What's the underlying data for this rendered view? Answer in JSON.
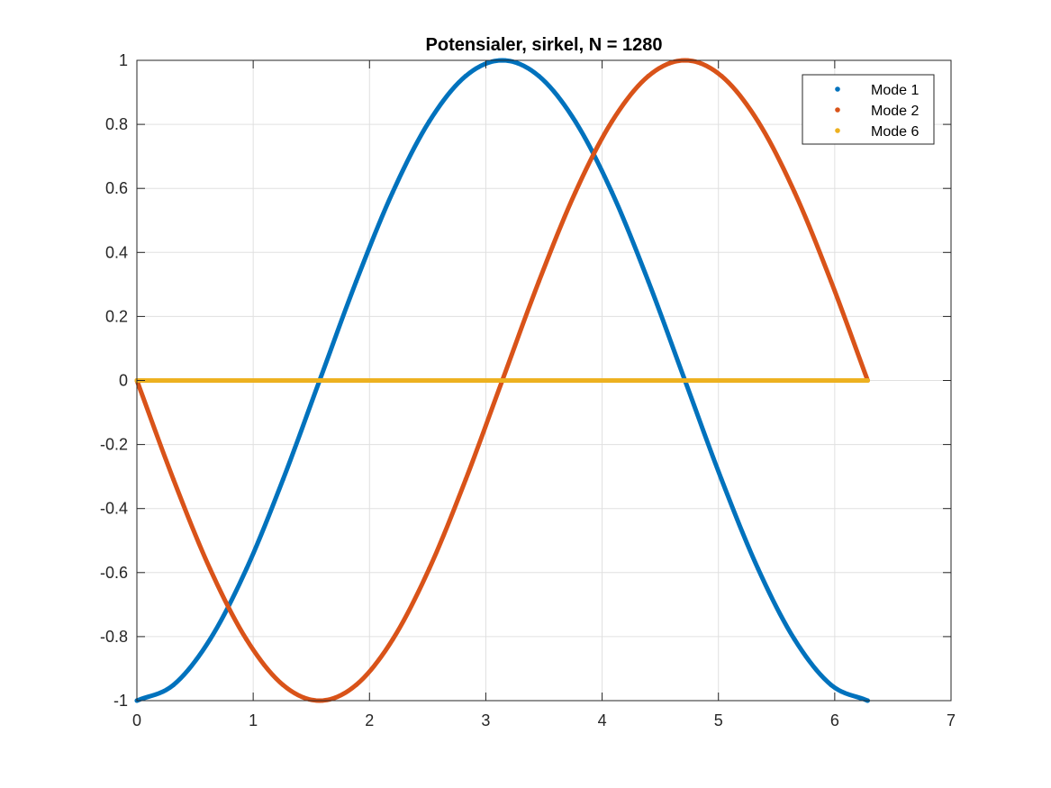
{
  "chart_data": {
    "type": "line",
    "title": "Potensialer, sirkel, N = 1280",
    "xlabel": "",
    "ylabel": "",
    "xlim": [
      0,
      7
    ],
    "ylim": [
      -1,
      1
    ],
    "x_ticks": [
      0,
      1,
      2,
      3,
      4,
      5,
      6,
      7
    ],
    "x_tick_labels": [
      "0",
      "1",
      "2",
      "3",
      "4",
      "5",
      "6",
      "7"
    ],
    "y_ticks": [
      -1,
      -0.8,
      -0.6,
      -0.4,
      -0.2,
      0,
      0.2,
      0.4,
      0.6,
      0.8,
      1
    ],
    "y_tick_labels": [
      "-1",
      "-0.8",
      "-0.6",
      "-0.4",
      "-0.2",
      "0",
      "0.2",
      "0.4",
      "0.6",
      "0.8",
      "1"
    ],
    "grid": true,
    "legend_position": "top-right",
    "series": [
      {
        "name": "Mode 1",
        "color": "#0072BD",
        "x": [
          0,
          0.3142,
          0.6283,
          0.9425,
          1.2566,
          1.5708,
          1.885,
          2.1991,
          2.5133,
          2.8274,
          3.1416,
          3.4558,
          3.7699,
          4.0841,
          4.3982,
          4.7124,
          5.0265,
          5.3407,
          5.6549,
          5.969,
          6.2832
        ],
        "values": [
          -1,
          -0.951,
          -0.809,
          -0.588,
          -0.309,
          0,
          0.309,
          0.588,
          0.809,
          0.951,
          1,
          0.951,
          0.809,
          0.588,
          0.309,
          0,
          -0.309,
          -0.588,
          -0.809,
          -0.951,
          -1
        ]
      },
      {
        "name": "Mode 2",
        "color": "#D95319",
        "x": [
          0,
          0.3142,
          0.6283,
          0.9425,
          1.2566,
          1.5708,
          1.885,
          2.1991,
          2.5133,
          2.8274,
          3.1416,
          3.4558,
          3.7699,
          4.0841,
          4.3982,
          4.7124,
          5.0265,
          5.3407,
          5.6549,
          5.969,
          6.2832
        ],
        "values": [
          0,
          -0.309,
          -0.588,
          -0.809,
          -0.951,
          -1,
          -0.951,
          -0.809,
          -0.588,
          -0.309,
          0,
          0.309,
          0.588,
          0.809,
          0.951,
          1,
          0.951,
          0.809,
          0.588,
          0.309,
          0
        ]
      },
      {
        "name": "Mode 6",
        "color": "#EDB120",
        "x": [
          0,
          0.3142,
          0.6283,
          0.9425,
          1.2566,
          1.5708,
          1.885,
          2.1991,
          2.5133,
          2.8274,
          3.1416,
          3.4558,
          3.7699,
          4.0841,
          4.3982,
          4.7124,
          5.0265,
          5.3407,
          5.6549,
          5.969,
          6.2832
        ],
        "values": [
          0,
          0,
          0,
          0,
          0,
          0,
          0,
          0,
          0,
          0,
          0,
          0,
          0,
          0,
          0,
          0,
          0,
          0,
          0,
          0,
          0
        ]
      }
    ]
  }
}
